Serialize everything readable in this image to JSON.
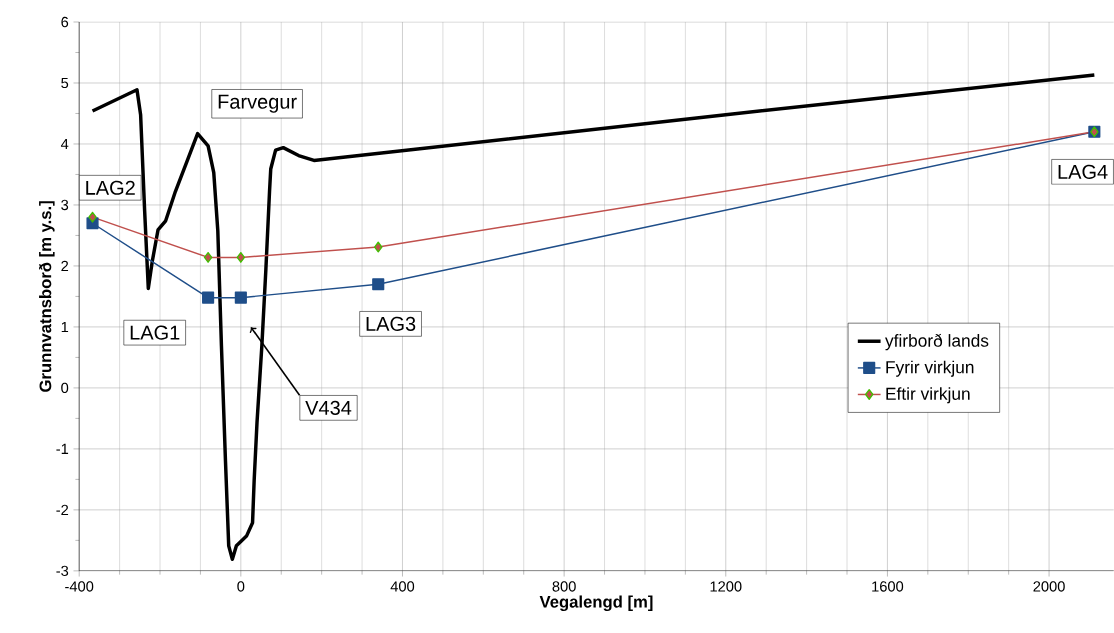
{
  "chart_data": {
    "type": "line",
    "xlabel": "Vegalengd [m]",
    "ylabel": "Grunnvatnsborð [m y.s.]",
    "xlim": [
      -400,
      2160
    ],
    "ylim": [
      -3,
      6
    ],
    "xticks": [
      -400,
      0,
      400,
      800,
      1200,
      1600,
      2000
    ],
    "yticks": [
      -3,
      -2,
      -1,
      0,
      1,
      2,
      3,
      4,
      5,
      6
    ],
    "grid": true,
    "legend": "right",
    "series": [
      {
        "name": "yfirborð lands",
        "color": "#000000",
        "marker": "none",
        "x": [
          -367,
          -257,
          -248,
          -238,
          -229,
          -219,
          -205,
          -186,
          -162,
          -133,
          -107,
          -81,
          -67,
          -57,
          -48,
          -38,
          -30,
          -21,
          -11,
          0,
          14,
          29,
          33,
          40,
          52,
          62,
          71,
          74,
          86,
          105,
          143,
          181,
          1200,
          2112
        ],
        "values": [
          4.54,
          4.89,
          4.48,
          2.9,
          1.63,
          2.08,
          2.59,
          2.74,
          3.22,
          3.72,
          4.17,
          3.97,
          3.53,
          2.58,
          0.69,
          -1.2,
          -2.59,
          -2.81,
          -2.59,
          -2.52,
          -2.43,
          -2.21,
          -1.51,
          -0.57,
          0.69,
          1.95,
          3.22,
          3.59,
          3.9,
          3.94,
          3.81,
          3.73,
          4.48,
          5.13
        ]
      },
      {
        "name": "Fyrir virkjun",
        "color": "#1f4e89",
        "marker": "square",
        "x": [
          -367,
          -81,
          0,
          340,
          2112
        ],
        "values": [
          2.7,
          1.48,
          1.48,
          1.7,
          4.2
        ]
      },
      {
        "name": "Eftir virkjun",
        "color": "#c0504d",
        "marker": "diamond",
        "x": [
          -367,
          -81,
          0,
          340,
          2112
        ],
        "values": [
          2.8,
          2.14,
          2.14,
          2.31,
          4.2
        ]
      }
    ],
    "annotations": [
      "LAG2",
      "LAG1",
      "Farvegur",
      "V434",
      "LAG3",
      "LAG4"
    ]
  }
}
